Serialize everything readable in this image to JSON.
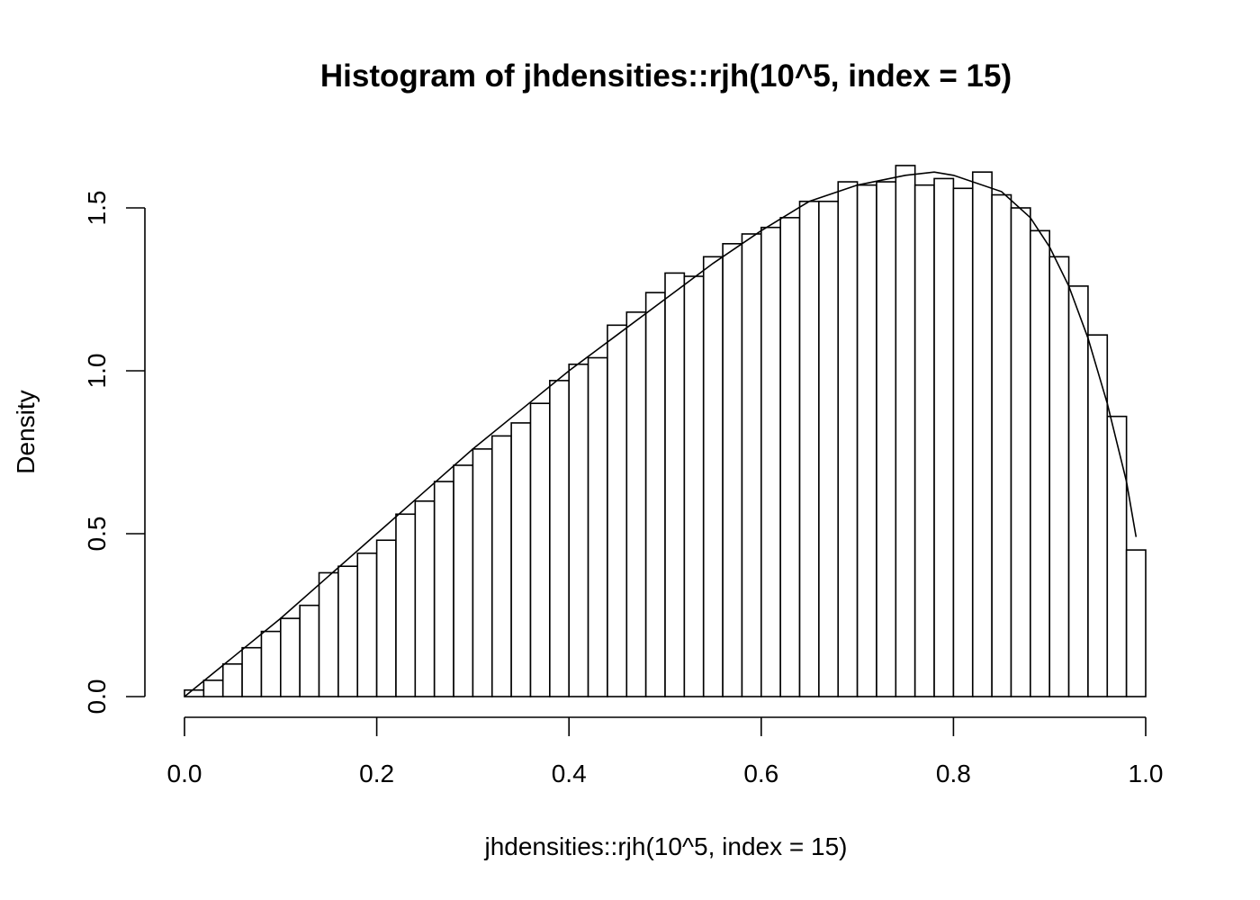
{
  "chart_data": {
    "type": "bar",
    "title": "Histogram of jhdensities::rjh(10^5, index = 15)",
    "xlabel": "jhdensities::rjh(10^5, index = 15)",
    "ylabel": "Density",
    "xlim": [
      0.0,
      1.0
    ],
    "ylim": [
      0.0,
      1.6
    ],
    "x_ticks": [
      0.0,
      0.2,
      0.4,
      0.6,
      0.8,
      1.0
    ],
    "x_tick_labels": [
      "0.0",
      "0.2",
      "0.4",
      "0.6",
      "0.8",
      "1.0"
    ],
    "y_ticks": [
      0.0,
      0.5,
      1.0,
      1.5
    ],
    "y_tick_labels": [
      "0.0",
      "0.5",
      "1.0",
      "1.5"
    ],
    "bin_width": 0.02,
    "bin_edges_start": 0.0,
    "values": [
      0.02,
      0.05,
      0.1,
      0.15,
      0.2,
      0.24,
      0.28,
      0.38,
      0.4,
      0.44,
      0.48,
      0.56,
      0.6,
      0.66,
      0.71,
      0.76,
      0.8,
      0.84,
      0.9,
      0.97,
      1.02,
      1.04,
      1.14,
      1.18,
      1.24,
      1.3,
      1.29,
      1.35,
      1.39,
      1.42,
      1.44,
      1.47,
      1.52,
      1.52,
      1.58,
      1.57,
      1.58,
      1.63,
      1.57,
      1.59,
      1.56,
      1.61,
      1.54,
      1.5,
      1.43,
      1.35,
      1.26,
      1.11,
      0.86,
      0.45
    ],
    "curve": {
      "x": [
        0.0,
        0.05,
        0.1,
        0.15,
        0.2,
        0.25,
        0.3,
        0.35,
        0.4,
        0.45,
        0.5,
        0.55,
        0.6,
        0.65,
        0.7,
        0.75,
        0.78,
        0.8,
        0.85,
        0.88,
        0.9,
        0.92,
        0.94,
        0.96,
        0.97,
        0.98,
        0.99
      ],
      "y": [
        0.0,
        0.12,
        0.24,
        0.37,
        0.5,
        0.63,
        0.76,
        0.88,
        1.0,
        1.11,
        1.22,
        1.33,
        1.43,
        1.52,
        1.57,
        1.6,
        1.61,
        1.6,
        1.55,
        1.47,
        1.38,
        1.26,
        1.1,
        0.9,
        0.78,
        0.66,
        0.49
      ]
    }
  }
}
